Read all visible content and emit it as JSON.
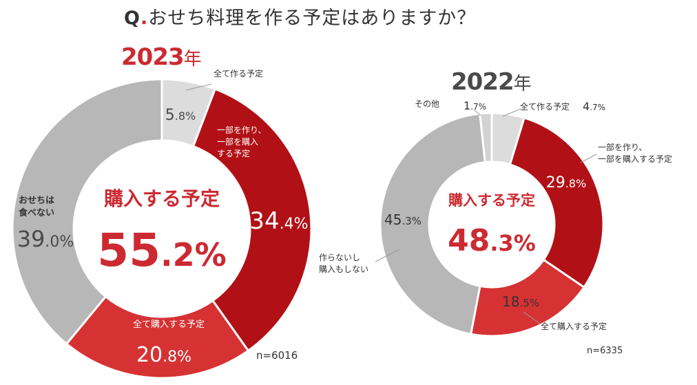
{
  "question": {
    "prefix": "Q",
    "dot": ".",
    "text": "おせち料理を作る予定はありますか？"
  },
  "colors": {
    "all_make": "#dcdcdc",
    "make_and_buy": "#b11116",
    "buy_all": "#d63233",
    "not_eat": "#b7b7b7",
    "other": "#d3d3d3",
    "accent_red": "#cc2a31",
    "dark_gray": "#4a4a4a",
    "dark_text": "#333333"
  },
  "chart_data": [
    {
      "type": "donut",
      "title_year": "2023",
      "title_suffix": "年",
      "center_label": "購入する予定",
      "center_value": {
        "int": "55",
        "dec": ".2",
        "unit": "%"
      },
      "n_label": "n=6016",
      "slices": [
        {
          "key": "all_make",
          "label": "全て作る予定",
          "value": 5.8
        },
        {
          "key": "make_and_buy",
          "label": "一部を作り、一部を購入する予定",
          "value": 34.4
        },
        {
          "key": "buy_all",
          "label": "全て購入する予定",
          "value": 20.8
        },
        {
          "key": "not_eat",
          "label": "おせちは食べない",
          "value": 39.0
        }
      ],
      "value_text": {
        "all_make": {
          "int": "5",
          "dec": ".8%"
        },
        "make_and_buy": {
          "int": "34",
          "dec": ".4%"
        },
        "buy_all": {
          "int": "20",
          "dec": ".8%"
        },
        "not_eat": {
          "int": "39",
          "dec": ".0%"
        }
      },
      "label_lines": {
        "all_make": [
          "全て作る予定"
        ],
        "make_and_buy": [
          "一部を作り、",
          "一部を購入",
          "する予定"
        ],
        "buy_all": [
          "全て購入する予定"
        ],
        "not_eat": [
          "おせちは",
          "食べない"
        ]
      }
    },
    {
      "type": "donut",
      "title_year": "2022",
      "title_suffix": "年",
      "center_label": "購入する予定",
      "center_value": {
        "int": "48",
        "dec": ".3",
        "unit": "%"
      },
      "n_label": "n=6335",
      "slices": [
        {
          "key": "all_make",
          "label": "全て作る予定",
          "value": 4.7
        },
        {
          "key": "make_and_buy",
          "label": "一部を作り、一部を購入する予定",
          "value": 29.8
        },
        {
          "key": "buy_all",
          "label": "全て購入する予定",
          "value": 18.5
        },
        {
          "key": "not_eat",
          "label": "作らないし購入もしない",
          "value": 45.3
        },
        {
          "key": "other",
          "label": "その他",
          "value": 1.7
        }
      ],
      "value_text": {
        "all_make": {
          "int": "4",
          "dec": ".7%"
        },
        "make_and_buy": {
          "int": "29",
          "dec": ".8%"
        },
        "buy_all": {
          "int": "18",
          "dec": ".5%"
        },
        "not_eat": {
          "int": "45",
          "dec": ".3%"
        },
        "other": {
          "int": "1",
          "dec": ".7%"
        }
      },
      "label_lines": {
        "all_make": [
          "全て作る予定"
        ],
        "make_and_buy": [
          "一部を作り、",
          "一部を購入する予定"
        ],
        "buy_all": [
          "全て購入する予定"
        ],
        "not_eat": [
          "作らないし",
          "購入もしない"
        ],
        "other": [
          "その他"
        ]
      }
    }
  ]
}
